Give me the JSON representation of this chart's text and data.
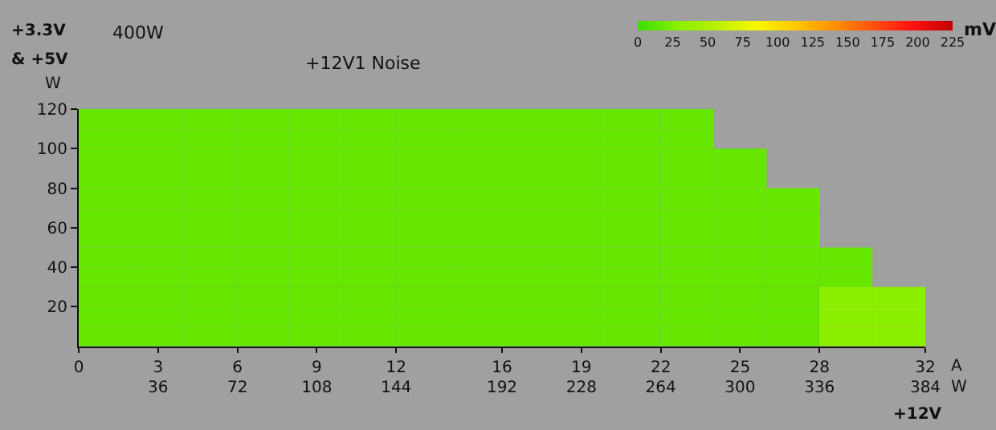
{
  "chart_data": {
    "type": "heatmap",
    "title": "+12V1 Noise",
    "subtitle": "400W",
    "xlabel": "A",
    "x2label": "W",
    "ylabel": "W",
    "clabel": "mV",
    "annotations": [
      "+3.3V",
      "& +5V",
      "+12V"
    ],
    "x": [
      1,
      3,
      5,
      7,
      9,
      11,
      13,
      15,
      17,
      19,
      21,
      23,
      25,
      27,
      29,
      31
    ],
    "y": [
      115,
      105,
      95,
      85,
      75,
      65,
      55,
      45,
      35,
      25,
      15,
      5
    ],
    "cells": [
      [
        15,
        15,
        15,
        15,
        15,
        15,
        15,
        15,
        15,
        15,
        15,
        15,
        null,
        null,
        null,
        null
      ],
      [
        15,
        15,
        15,
        15,
        15,
        15,
        15,
        15,
        15,
        15,
        15,
        15,
        null,
        null,
        null,
        null
      ],
      [
        15,
        15,
        15,
        15,
        15,
        15,
        15,
        15,
        15,
        15,
        15,
        15,
        15,
        null,
        null,
        null
      ],
      [
        15,
        15,
        15,
        15,
        15,
        15,
        15,
        15,
        15,
        15,
        15,
        15,
        15,
        null,
        null,
        null
      ],
      [
        15,
        15,
        15,
        15,
        15,
        15,
        15,
        15,
        15,
        15,
        15,
        15,
        15,
        15,
        null,
        null
      ],
      [
        15,
        15,
        15,
        15,
        15,
        15,
        15,
        15,
        15,
        15,
        15,
        15,
        15,
        15,
        null,
        null
      ],
      [
        15,
        15,
        15,
        15,
        15,
        15,
        15,
        15,
        15,
        15,
        15,
        15,
        15,
        15,
        null,
        null
      ],
      [
        15,
        15,
        15,
        15,
        15,
        15,
        15,
        15,
        15,
        15,
        15,
        15,
        15,
        15,
        15,
        null
      ],
      [
        15,
        15,
        15,
        15,
        15,
        15,
        15,
        15,
        15,
        15,
        15,
        15,
        15,
        15,
        15,
        null
      ],
      [
        15,
        15,
        15,
        15,
        15,
        15,
        15,
        15,
        15,
        15,
        15,
        15,
        15,
        15,
        30,
        30
      ],
      [
        15,
        15,
        15,
        15,
        15,
        15,
        15,
        15,
        15,
        15,
        15,
        15,
        15,
        15,
        30,
        30
      ],
      [
        15,
        15,
        15,
        15,
        15,
        15,
        15,
        15,
        15,
        15,
        15,
        15,
        15,
        15,
        30,
        30
      ]
    ],
    "clim": [
      0,
      225
    ],
    "cticks": [
      0,
      25,
      50,
      75,
      100,
      125,
      150,
      175,
      200,
      225
    ],
    "xlim": [
      0,
      32
    ],
    "xticks": [
      0,
      3,
      6,
      9,
      12,
      16,
      19,
      22,
      25,
      28,
      32
    ],
    "x2lim": [
      0,
      384
    ],
    "x2ticks": [
      36,
      72,
      108,
      144,
      192,
      228,
      264,
      300,
      336,
      384
    ],
    "ylim": [
      0,
      120
    ],
    "yticks": [
      20,
      40,
      60,
      80,
      100,
      120
    ]
  }
}
